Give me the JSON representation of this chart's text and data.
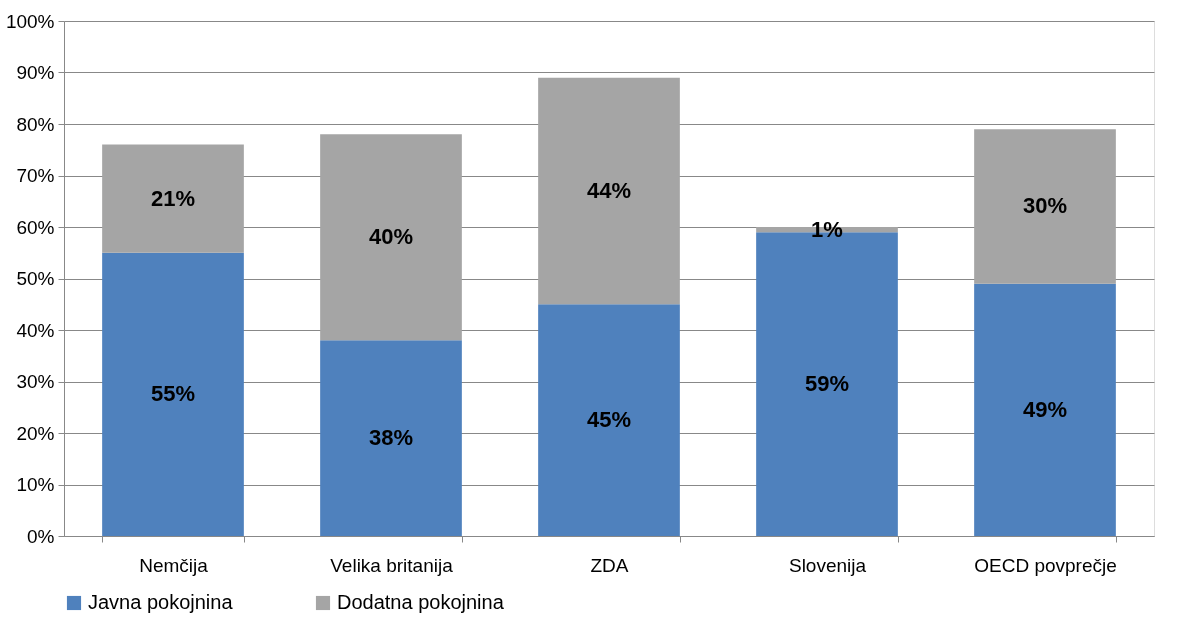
{
  "chart_data": {
    "type": "bar",
    "stacked": true,
    "categories": [
      "Nemčija",
      "Velika britanija",
      "ZDA",
      "Slovenija",
      "OECD povprečje"
    ],
    "series": [
      {
        "name": "Javna pokojnina",
        "color": "#4f81bd",
        "values": [
          55,
          38,
          45,
          59,
          49
        ],
        "value_labels": [
          "55%",
          "38%",
          "45%",
          "59%",
          "49%"
        ]
      },
      {
        "name": "Dodatna pokojnina",
        "color": "#a5a5a5",
        "values": [
          21,
          40,
          44,
          1,
          30
        ],
        "value_labels": [
          "21%",
          "40%",
          "44%",
          "1%",
          "30%"
        ]
      }
    ],
    "ylim": [
      0,
      100
    ],
    "yticks": [
      {
        "value": 0,
        "label": "0%"
      },
      {
        "value": 10,
        "label": "10%"
      },
      {
        "value": 20,
        "label": "20%"
      },
      {
        "value": 30,
        "label": "30%"
      },
      {
        "value": 40,
        "label": "40%"
      },
      {
        "value": 50,
        "label": "50%"
      },
      {
        "value": 60,
        "label": "60%"
      },
      {
        "value": 70,
        "label": "70%"
      },
      {
        "value": 80,
        "label": "80%"
      },
      {
        "value": 90,
        "label": "90%"
      },
      {
        "value": 100,
        "label": "100%"
      }
    ],
    "grid": "y",
    "legend": "bottom"
  }
}
